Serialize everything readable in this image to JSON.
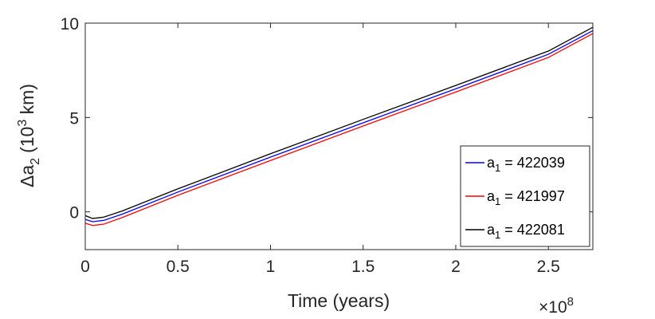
{
  "chart_data": {
    "type": "line",
    "xlabel": "Time (years)",
    "ylabel_base": "Δa",
    "ylabel_sub": "2",
    "ylabel_units_pre": "(10",
    "ylabel_units_sup": "3",
    "ylabel_units_post": " km)",
    "x_exponent_prefix": "×10",
    "x_exponent_power": "8",
    "x_tick_labels": [
      "0",
      "0.5",
      "1",
      "1.5",
      "2",
      "2.5"
    ],
    "y_tick_labels": [
      "0",
      "5",
      "10"
    ],
    "xlim": [
      0,
      2.74
    ],
    "ylim": [
      -2,
      10
    ],
    "x_scale_factor": 100000000,
    "grid": false,
    "legend_position": "bottom-right",
    "series": [
      {
        "legend_prefix": "a",
        "legend_sub": "1",
        "legend_value": " = 422039",
        "color": "#0000ff",
        "x": [
          0.0,
          0.04,
          0.1,
          0.2,
          0.5,
          1.0,
          1.5,
          2.0,
          2.5,
          2.74
        ],
        "y": [
          -0.4,
          -0.52,
          -0.45,
          -0.12,
          1.05,
          2.9,
          4.72,
          6.52,
          8.35,
          9.6
        ]
      },
      {
        "legend_prefix": "a",
        "legend_sub": "1",
        "legend_value": " = 421997",
        "color": "#ff0000",
        "x": [
          0.0,
          0.04,
          0.1,
          0.2,
          0.5,
          1.0,
          1.5,
          2.0,
          2.5,
          2.74
        ],
        "y": [
          -0.6,
          -0.72,
          -0.65,
          -0.3,
          0.88,
          2.72,
          4.55,
          6.35,
          8.18,
          9.45
        ]
      },
      {
        "legend_prefix": "a",
        "legend_sub": "1",
        "legend_value": " = 422081",
        "color": "#000000",
        "x": [
          0.0,
          0.04,
          0.1,
          0.2,
          0.5,
          1.0,
          1.5,
          2.0,
          2.5,
          2.74
        ],
        "y": [
          -0.2,
          -0.35,
          -0.28,
          0.05,
          1.22,
          3.08,
          4.9,
          6.7,
          8.52,
          9.78
        ]
      }
    ]
  }
}
